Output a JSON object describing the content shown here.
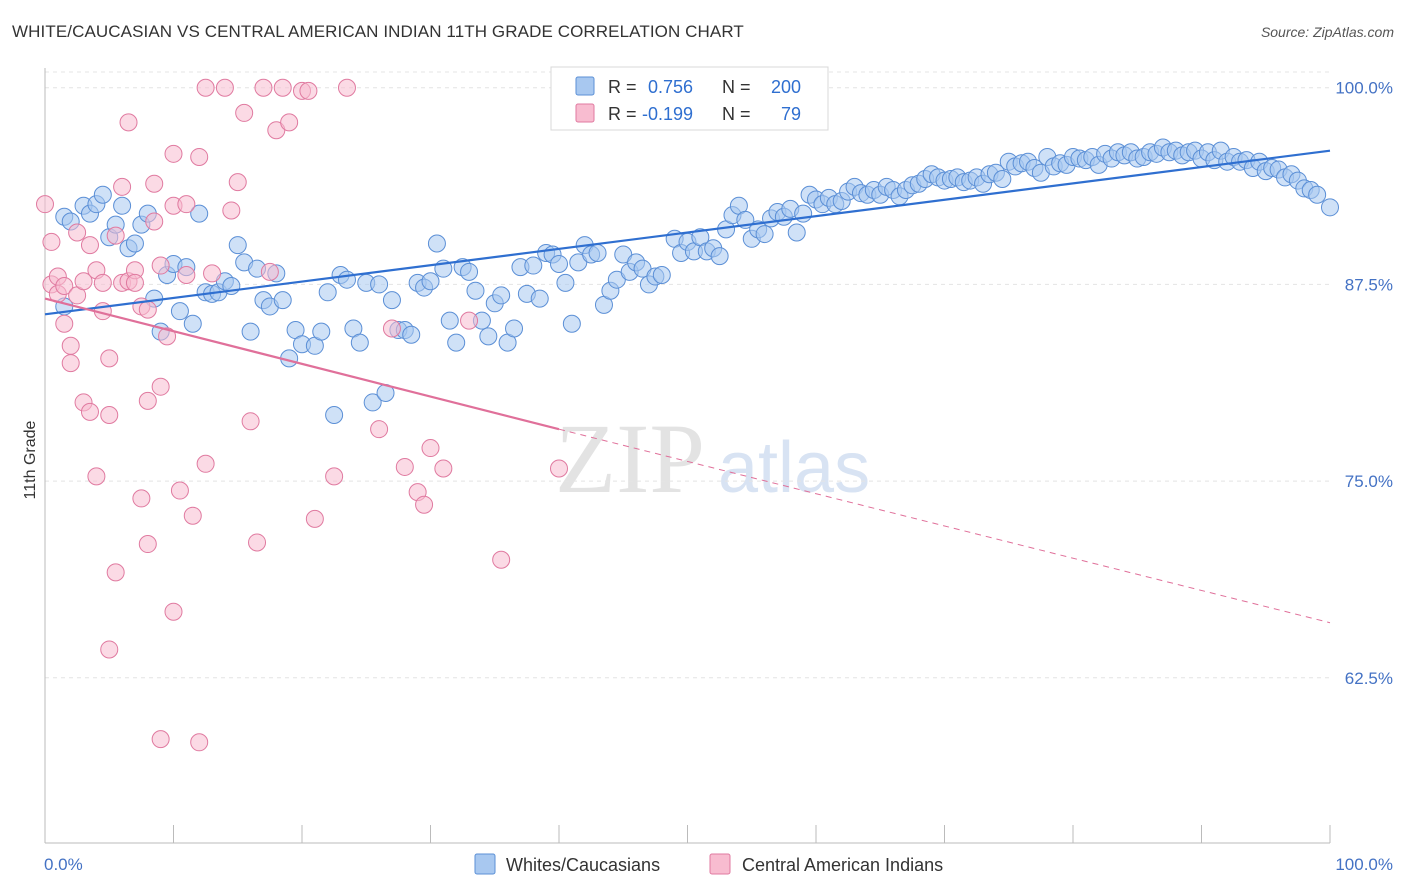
{
  "title": "WHITE/CAUCASIAN VS CENTRAL AMERICAN INDIAN 11TH GRADE CORRELATION CHART",
  "source": "Source: ZipAtlas.com",
  "watermark": {
    "zip": "ZIP",
    "atlas": "atlas"
  },
  "legend": {
    "rows": [
      {
        "r_label": "R =",
        "r_value": "0.756",
        "n_label": "N =",
        "n_value": "200",
        "color": "#a8c8f0",
        "stroke": "#5b8fd6"
      },
      {
        "r_label": "R =",
        "r_value": "-0.199",
        "n_label": "N =",
        "n_value": "79",
        "color": "#f8bcd0",
        "stroke": "#e07aa0"
      }
    ]
  },
  "bottom_legend": [
    {
      "label": "Whites/Caucasians",
      "color": "#a8c8f0",
      "stroke": "#5b8fd6"
    },
    {
      "label": "Central American Indians",
      "color": "#f8bcd0",
      "stroke": "#e07aa0"
    }
  ],
  "chart_data": {
    "type": "scatter",
    "title": "WHITE/CAUCASIAN VS CENTRAL AMERICAN INDIAN 11TH GRADE CORRELATION CHART",
    "xlabel": "",
    "ylabel": "11th Grade",
    "x_tick_labels": [
      "0.0%",
      "100.0%"
    ],
    "y_tick_labels": [
      "100.0%",
      "87.5%",
      "75.0%",
      "62.5%"
    ],
    "y_ticks": [
      100.0,
      87.5,
      75.0,
      62.5
    ],
    "xlim": [
      0,
      100
    ],
    "ylim": [
      52,
      101
    ],
    "grid": true,
    "series": [
      {
        "name": "Whites/Caucasians",
        "color": "#a8c8f0",
        "stroke": "#5b8fd6",
        "trend": {
          "x": [
            0,
            100
          ],
          "y": [
            85.6,
            96.0
          ],
          "color": "#2f6fd0"
        },
        "points": [
          [
            1.5,
            86.1
          ],
          [
            1.5,
            91.8
          ],
          [
            2,
            91.5
          ],
          [
            3,
            92.5
          ],
          [
            3.5,
            92
          ],
          [
            4,
            92.6
          ],
          [
            4.5,
            93.2
          ],
          [
            5,
            90.5
          ],
          [
            5.5,
            91.3
          ],
          [
            6,
            92.5
          ],
          [
            6.5,
            89.8
          ],
          [
            7,
            90.1
          ],
          [
            7.5,
            91.3
          ],
          [
            8,
            92
          ],
          [
            8.5,
            86.6
          ],
          [
            9,
            84.5
          ],
          [
            9.5,
            88.1
          ],
          [
            10,
            88.8
          ],
          [
            10.5,
            85.8
          ],
          [
            11,
            88.6
          ],
          [
            11.5,
            85
          ],
          [
            12,
            92
          ],
          [
            12.5,
            87
          ],
          [
            13,
            86.9
          ],
          [
            13.5,
            87
          ],
          [
            14,
            87.7
          ],
          [
            14.5,
            87.4
          ],
          [
            15,
            90
          ],
          [
            15.5,
            88.9
          ],
          [
            16,
            84.5
          ],
          [
            16.5,
            88.5
          ],
          [
            17,
            86.5
          ],
          [
            17.5,
            86.1
          ],
          [
            18,
            88.2
          ],
          [
            18.5,
            86.5
          ],
          [
            19,
            82.8
          ],
          [
            19.5,
            84.6
          ],
          [
            20,
            83.7
          ],
          [
            21,
            83.6
          ],
          [
            21.5,
            84.5
          ],
          [
            22,
            87
          ],
          [
            22.5,
            79.2
          ],
          [
            23,
            88.1
          ],
          [
            23.5,
            87.8
          ],
          [
            24,
            84.7
          ],
          [
            24.5,
            83.8
          ],
          [
            25,
            87.6
          ],
          [
            25.5,
            80
          ],
          [
            26,
            87.5
          ],
          [
            26.5,
            80.6
          ],
          [
            27,
            86.5
          ],
          [
            27.5,
            84.6
          ],
          [
            28,
            84.6
          ],
          [
            28.5,
            84.3
          ],
          [
            29,
            87.6
          ],
          [
            29.5,
            87.3
          ],
          [
            30,
            87.7
          ],
          [
            30.5,
            90.1
          ],
          [
            31,
            88.5
          ],
          [
            31.5,
            85.2
          ],
          [
            32,
            83.8
          ],
          [
            32.5,
            88.6
          ],
          [
            33,
            88.3
          ],
          [
            33.5,
            87.1
          ],
          [
            34,
            85.2
          ],
          [
            34.5,
            84.2
          ],
          [
            35,
            86.3
          ],
          [
            35.5,
            86.8
          ],
          [
            36,
            83.8
          ],
          [
            36.5,
            84.7
          ],
          [
            37,
            88.6
          ],
          [
            37.5,
            86.9
          ],
          [
            38,
            88.7
          ],
          [
            38.5,
            86.6
          ],
          [
            39,
            89.5
          ],
          [
            39.5,
            89.4
          ],
          [
            40,
            88.8
          ],
          [
            40.5,
            87.6
          ],
          [
            41,
            85
          ],
          [
            41.5,
            88.9
          ],
          [
            42,
            90
          ],
          [
            42.5,
            89.4
          ],
          [
            43,
            89.5
          ],
          [
            43.5,
            86.2
          ],
          [
            44,
            87.1
          ],
          [
            44.5,
            87.8
          ],
          [
            45,
            89.4
          ],
          [
            45.5,
            88.3
          ],
          [
            46,
            88.9
          ],
          [
            46.5,
            88.5
          ],
          [
            47,
            87.5
          ],
          [
            47.5,
            88
          ],
          [
            48,
            88.1
          ],
          [
            49,
            90.4
          ],
          [
            49.5,
            89.5
          ],
          [
            50,
            90.2
          ],
          [
            50.5,
            89.6
          ],
          [
            51,
            90.5
          ],
          [
            51.5,
            89.6
          ],
          [
            52,
            89.8
          ],
          [
            52.5,
            89.3
          ],
          [
            53,
            91
          ],
          [
            53.5,
            91.9
          ],
          [
            54,
            92.5
          ],
          [
            54.5,
            91.6
          ],
          [
            55,
            90.4
          ],
          [
            55.5,
            91
          ],
          [
            56,
            90.7
          ],
          [
            56.5,
            91.7
          ],
          [
            57,
            92.1
          ],
          [
            57.5,
            91.8
          ],
          [
            58,
            92.3
          ],
          [
            58.5,
            90.8
          ],
          [
            59,
            92
          ],
          [
            59.5,
            93.2
          ],
          [
            60,
            92.9
          ],
          [
            60.5,
            92.6
          ],
          [
            61,
            93
          ],
          [
            61.5,
            92.6
          ],
          [
            62,
            92.8
          ],
          [
            62.5,
            93.4
          ],
          [
            63,
            93.7
          ],
          [
            63.5,
            93.3
          ],
          [
            64,
            93.2
          ],
          [
            64.5,
            93.5
          ],
          [
            65,
            93.2
          ],
          [
            65.5,
            93.7
          ],
          [
            66,
            93.5
          ],
          [
            66.5,
            93.1
          ],
          [
            67,
            93.5
          ],
          [
            67.5,
            93.8
          ],
          [
            68,
            93.9
          ],
          [
            68.5,
            94.2
          ],
          [
            69,
            94.5
          ],
          [
            69.5,
            94.3
          ],
          [
            70,
            94.1
          ],
          [
            70.5,
            94.2
          ],
          [
            71,
            94.3
          ],
          [
            71.5,
            94
          ],
          [
            72,
            94.1
          ],
          [
            72.5,
            94.3
          ],
          [
            73,
            93.9
          ],
          [
            73.5,
            94.5
          ],
          [
            74,
            94.6
          ],
          [
            74.5,
            94.2
          ],
          [
            75,
            95.3
          ],
          [
            75.5,
            95
          ],
          [
            76,
            95.2
          ],
          [
            76.5,
            95.3
          ],
          [
            77,
            94.9
          ],
          [
            77.5,
            94.6
          ],
          [
            78,
            95.6
          ],
          [
            78.5,
            95
          ],
          [
            79,
            95.2
          ],
          [
            79.5,
            95.1
          ],
          [
            80,
            95.6
          ],
          [
            80.5,
            95.5
          ],
          [
            81,
            95.4
          ],
          [
            81.5,
            95.6
          ],
          [
            82,
            95.1
          ],
          [
            82.5,
            95.8
          ],
          [
            83,
            95.5
          ],
          [
            83.5,
            95.9
          ],
          [
            84,
            95.7
          ],
          [
            84.5,
            95.9
          ],
          [
            85,
            95.5
          ],
          [
            85.5,
            95.6
          ],
          [
            86,
            95.9
          ],
          [
            86.5,
            95.8
          ],
          [
            87,
            96.2
          ],
          [
            87.5,
            95.9
          ],
          [
            88,
            96
          ],
          [
            88.5,
            95.7
          ],
          [
            89,
            95.9
          ],
          [
            89.5,
            96
          ],
          [
            90,
            95.5
          ],
          [
            90.5,
            95.9
          ],
          [
            91,
            95.4
          ],
          [
            91.5,
            96
          ],
          [
            92,
            95.3
          ],
          [
            92.5,
            95.6
          ],
          [
            93,
            95.3
          ],
          [
            93.5,
            95.4
          ],
          [
            94,
            94.9
          ],
          [
            94.5,
            95.3
          ],
          [
            95,
            94.7
          ],
          [
            95.5,
            94.9
          ],
          [
            96,
            94.8
          ],
          [
            96.5,
            94.3
          ],
          [
            97,
            94.5
          ],
          [
            97.5,
            94.1
          ],
          [
            98,
            93.6
          ],
          [
            98.5,
            93.5
          ],
          [
            99,
            93.2
          ],
          [
            100,
            92.4
          ]
        ]
      },
      {
        "name": "Central American Indians",
        "color": "#f8bcd0",
        "stroke": "#e07aa0",
        "trend": {
          "x": [
            0,
            40
          ],
          "y": [
            86.6,
            78.3
          ],
          "color": "#e0709a",
          "dashed_to": {
            "x": 100,
            "y": 66.0
          }
        },
        "points": [
          [
            0,
            92.6
          ],
          [
            0.5,
            90.2
          ],
          [
            0.5,
            87.5
          ],
          [
            1,
            86.9
          ],
          [
            1,
            88
          ],
          [
            1.5,
            87.4
          ],
          [
            1.5,
            85
          ],
          [
            2,
            83.6
          ],
          [
            2,
            82.5
          ],
          [
            2.5,
            86.8
          ],
          [
            2.5,
            90.8
          ],
          [
            3,
            87.7
          ],
          [
            3,
            80
          ],
          [
            3.5,
            79.4
          ],
          [
            3.5,
            90
          ],
          [
            4,
            88.4
          ],
          [
            4,
            75.3
          ],
          [
            4.5,
            87.6
          ],
          [
            4.5,
            85.8
          ],
          [
            5,
            82.8
          ],
          [
            5,
            79.2
          ],
          [
            5,
            64.3
          ],
          [
            5.5,
            90.6
          ],
          [
            5.5,
            69.2
          ],
          [
            6,
            93.7
          ],
          [
            6,
            87.6
          ],
          [
            6.5,
            87.7
          ],
          [
            6.5,
            97.8
          ],
          [
            7,
            88.4
          ],
          [
            7,
            87.6
          ],
          [
            7.5,
            86.1
          ],
          [
            7.5,
            73.9
          ],
          [
            8,
            85.9
          ],
          [
            8,
            80.1
          ],
          [
            8,
            71
          ],
          [
            8.5,
            91.5
          ],
          [
            8.5,
            93.9
          ],
          [
            9,
            88.7
          ],
          [
            9,
            81
          ],
          [
            9,
            58.6
          ],
          [
            9.5,
            84.2
          ],
          [
            10,
            95.8
          ],
          [
            10,
            92.5
          ],
          [
            10,
            66.7
          ],
          [
            10.5,
            74.4
          ],
          [
            11,
            88.1
          ],
          [
            11,
            92.6
          ],
          [
            11.5,
            72.8
          ],
          [
            12,
            95.6
          ],
          [
            12,
            58.4
          ],
          [
            12.5,
            100
          ],
          [
            12.5,
            76.1
          ],
          [
            13,
            88.2
          ],
          [
            14,
            100
          ],
          [
            14.5,
            92.2
          ],
          [
            15,
            94
          ],
          [
            15.5,
            98.4
          ],
          [
            16,
            78.8
          ],
          [
            16.5,
            71.1
          ],
          [
            17,
            100
          ],
          [
            17.5,
            88.3
          ],
          [
            18,
            97.3
          ],
          [
            18.5,
            100
          ],
          [
            19,
            97.8
          ],
          [
            20,
            99.8
          ],
          [
            20.5,
            99.8
          ],
          [
            21,
            72.6
          ],
          [
            22.5,
            75.3
          ],
          [
            23.5,
            100
          ],
          [
            26,
            78.3
          ],
          [
            27,
            84.7
          ],
          [
            28,
            75.9
          ],
          [
            29,
            74.3
          ],
          [
            29.5,
            73.5
          ],
          [
            30,
            77.1
          ],
          [
            31,
            75.8
          ],
          [
            33,
            85.2
          ],
          [
            35.5,
            70
          ],
          [
            40,
            75.8
          ]
        ]
      }
    ]
  }
}
